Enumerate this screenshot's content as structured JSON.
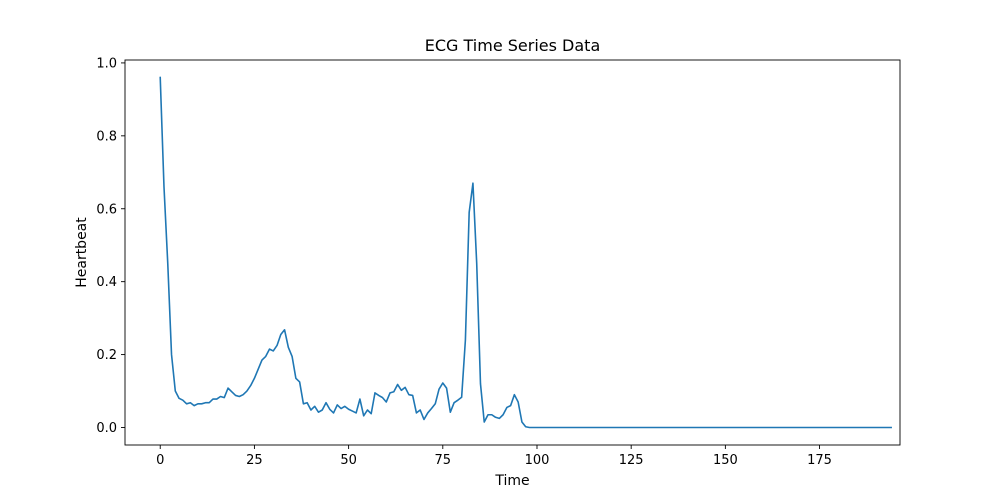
{
  "chart_data": {
    "type": "line",
    "title": "ECG Time Series Data",
    "xlabel": "Time",
    "ylabel": "Heartbeat",
    "xlim": [
      -9.35,
      196.35
    ],
    "ylim": [
      -0.048,
      1.008
    ],
    "xticks": [
      0,
      25,
      50,
      75,
      100,
      125,
      150,
      175
    ],
    "yticks": [
      0.0,
      0.2,
      0.4,
      0.6,
      0.8,
      1.0
    ],
    "xtick_labels": [
      "0",
      "25",
      "50",
      "75",
      "100",
      "125",
      "150",
      "175"
    ],
    "ytick_labels": [
      "0.0",
      "0.2",
      "0.4",
      "0.6",
      "0.8",
      "1.0"
    ],
    "grid": false,
    "legend": "none",
    "series": [
      {
        "color": "#1f77b4",
        "x_start": 0,
        "x_step": 1,
        "values": [
          0.96,
          0.66,
          0.45,
          0.2,
          0.1,
          0.08,
          0.075,
          0.065,
          0.068,
          0.06,
          0.065,
          0.065,
          0.068,
          0.068,
          0.078,
          0.078,
          0.085,
          0.082,
          0.108,
          0.098,
          0.088,
          0.085,
          0.09,
          0.1,
          0.115,
          0.135,
          0.16,
          0.185,
          0.195,
          0.215,
          0.21,
          0.225,
          0.255,
          0.268,
          0.22,
          0.195,
          0.135,
          0.125,
          0.065,
          0.068,
          0.048,
          0.058,
          0.042,
          0.048,
          0.068,
          0.05,
          0.04,
          0.062,
          0.052,
          0.058,
          0.05,
          0.045,
          0.04,
          0.078,
          0.032,
          0.048,
          0.038,
          0.095,
          0.088,
          0.082,
          0.07,
          0.095,
          0.098,
          0.118,
          0.102,
          0.11,
          0.09,
          0.088,
          0.04,
          0.048,
          0.022,
          0.04,
          0.052,
          0.065,
          0.105,
          0.122,
          0.108,
          0.042,
          0.068,
          0.075,
          0.083,
          0.24,
          0.59,
          0.67,
          0.45,
          0.12,
          0.015,
          0.035,
          0.035,
          0.028,
          0.025,
          0.035,
          0.055,
          0.06,
          0.09,
          0.07,
          0.015,
          0.002,
          0.0,
          0.0,
          0.0,
          0.0,
          0.0,
          0.0,
          0.0,
          0.0,
          0.0,
          0.0,
          0.0,
          0.0,
          0.0,
          0.0,
          0.0,
          0.0,
          0.0,
          0.0,
          0.0,
          0.0,
          0.0,
          0.0,
          0.0,
          0.0,
          0.0,
          0.0,
          0.0,
          0.0,
          0.0,
          0.0,
          0.0,
          0.0,
          0.0,
          0.0,
          0.0,
          0.0,
          0.0,
          0.0,
          0.0,
          0.0,
          0.0,
          0.0,
          0.0,
          0.0,
          0.0,
          0.0,
          0.0,
          0.0,
          0.0,
          0.0,
          0.0,
          0.0,
          0.0,
          0.0,
          0.0,
          0.0,
          0.0,
          0.0,
          0.0,
          0.0,
          0.0,
          0.0,
          0.0,
          0.0,
          0.0,
          0.0,
          0.0,
          0.0,
          0.0,
          0.0,
          0.0,
          0.0,
          0.0,
          0.0,
          0.0,
          0.0,
          0.0,
          0.0,
          0.0,
          0.0,
          0.0,
          0.0,
          0.0,
          0.0,
          0.0,
          0.0,
          0.0,
          0.0,
          0.0,
          0.0,
          0.0,
          0.0,
          0.0,
          0.0,
          0.0,
          0.0,
          0.0
        ]
      }
    ]
  }
}
